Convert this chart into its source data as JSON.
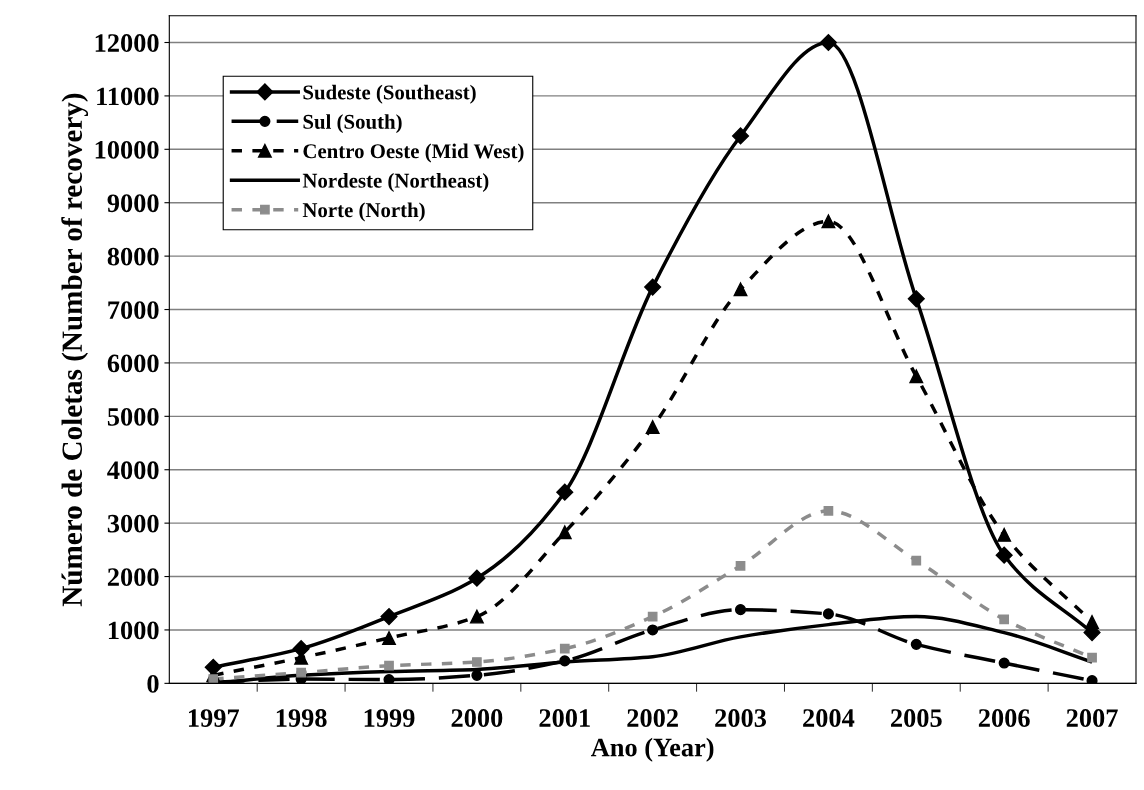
{
  "chart_data": {
    "type": "line",
    "xlabel": "Ano (Year)",
    "ylabel": "Número de Coletas (Number of recovery)",
    "categories": [
      "1997",
      "1998",
      "1999",
      "2000",
      "2001",
      "2002",
      "2003",
      "2004",
      "2005",
      "2006",
      "2007"
    ],
    "series": [
      {
        "name": "Sudeste (Southeast)",
        "color": "#000000",
        "marker": "diamond",
        "line_style": "solid",
        "values": [
          300,
          650,
          1250,
          1970,
          3580,
          7420,
          10250,
          12000,
          7200,
          2400,
          950
        ]
      },
      {
        "name": "Sul (South)",
        "color": "#000000",
        "marker": "circle",
        "line_style": "dashed",
        "values": [
          20,
          80,
          70,
          150,
          420,
          1000,
          1380,
          1300,
          730,
          380,
          50
        ]
      },
      {
        "name": "Centro Oeste (Mid West)",
        "color": "#000000",
        "marker": "triangle",
        "line_style": "dotted",
        "values": [
          150,
          480,
          850,
          1250,
          2830,
          4800,
          7380,
          8650,
          5750,
          2780,
          1150
        ]
      },
      {
        "name": "Nordeste (Northeast)",
        "color": "#000000",
        "marker": "none",
        "line_style": "solid",
        "values": [
          0,
          150,
          220,
          260,
          400,
          500,
          870,
          1100,
          1250,
          950,
          400
        ]
      },
      {
        "name": "Norte (North)",
        "color": "#8c8c8c",
        "marker": "square",
        "line_style": "dotted",
        "values": [
          80,
          200,
          330,
          400,
          650,
          1250,
          2200,
          3230,
          2300,
          1200,
          480
        ]
      }
    ],
    "ylim": [
      0,
      12500
    ],
    "yticks": [
      0,
      1000,
      2000,
      3000,
      4000,
      5000,
      6000,
      7000,
      8000,
      9000,
      10000,
      11000,
      12000
    ],
    "grid": "y",
    "legend": "top left"
  }
}
